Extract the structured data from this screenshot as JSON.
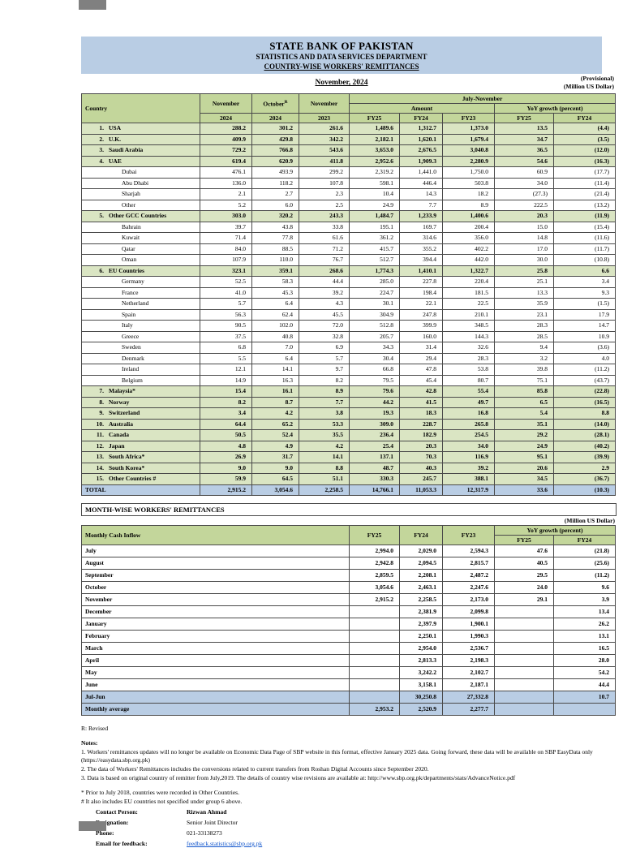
{
  "colors": {
    "header_blue": "#b9cde4",
    "green_header": "#c3d69b",
    "green_row": "#dae5c3",
    "blue_row": "#b9cde4",
    "link_blue": "#1155cc",
    "artifact_grey": "#808080"
  },
  "header": {
    "bank": "STATE BANK OF PAKISTAN",
    "department": "STATISTICS AND DATA SERVICES DEPARTMENT",
    "report": "COUNTRY-WISE WORKERS' REMITTANCES",
    "period": "November, 2024",
    "provisional": "(Provisional)",
    "unit": "(Million US Dollar)"
  },
  "main_table": {
    "header": {
      "country": "Country",
      "col_nov": "November",
      "col_oct": "October",
      "col_oct_sup": "R",
      "col_nov_prev": "November",
      "year_nov": "2024",
      "year_oct": "2024",
      "year_nov_prev": "2023",
      "july_november": "July-November",
      "amount": "Amount",
      "yoy": "YoY growth (percent)",
      "amount_fy": [
        "FY25",
        "FY24",
        "FY23"
      ],
      "yoy_fy": [
        "FY25",
        "FY24"
      ]
    },
    "rows": [
      {
        "n": "1.",
        "name": "USA",
        "t": "main",
        "v": [
          "288.2",
          "301.2",
          "261.6",
          "1,489.6",
          "1,312.7",
          "1,373.0",
          "13.5",
          "(4.4)"
        ]
      },
      {
        "n": "2.",
        "name": "U.K.",
        "t": "main",
        "v": [
          "409.9",
          "429.8",
          "342.2",
          "2,182.1",
          "1,620.1",
          "1,679.4",
          "34.7",
          "(3.5)"
        ]
      },
      {
        "n": "3.",
        "name": "Saudi Arabia",
        "t": "main",
        "v": [
          "729.2",
          "766.8",
          "543.6",
          "3,653.0",
          "2,676.5",
          "3,040.8",
          "36.5",
          "(12.0)"
        ]
      },
      {
        "n": "4.",
        "name": "UAE",
        "t": "main",
        "v": [
          "619.4",
          "620.9",
          "411.8",
          "2,952.6",
          "1,909.3",
          "2,280.9",
          "54.6",
          "(16.3)"
        ]
      },
      {
        "n": "",
        "name": "Dubai",
        "t": "sub",
        "v": [
          "476.1",
          "493.9",
          "299.2",
          "2,319.2",
          "1,441.0",
          "1,750.0",
          "60.9",
          "(17.7)"
        ]
      },
      {
        "n": "",
        "name": "Abu Dhabi",
        "t": "sub",
        "v": [
          "136.0",
          "118.2",
          "107.8",
          "598.1",
          "446.4",
          "503.8",
          "34.0",
          "(11.4)"
        ]
      },
      {
        "n": "",
        "name": "Sharjah",
        "t": "sub",
        "v": [
          "2.1",
          "2.7",
          "2.3",
          "10.4",
          "14.3",
          "18.2",
          "(27.3)",
          "(21.4)"
        ]
      },
      {
        "n": "",
        "name": "Other",
        "t": "sub",
        "v": [
          "5.2",
          "6.0",
          "2.5",
          "24.9",
          "7.7",
          "8.9",
          "222.5",
          "(13.2)"
        ]
      },
      {
        "n": "5.",
        "name": "Other GCC Countries",
        "t": "main",
        "v": [
          "303.0",
          "320.2",
          "243.3",
          "1,484.7",
          "1,233.9",
          "1,400.6",
          "20.3",
          "(11.9)"
        ]
      },
      {
        "n": "",
        "name": "Bahrain",
        "t": "sub",
        "v": [
          "39.7",
          "43.8",
          "33.8",
          "195.1",
          "169.7",
          "200.4",
          "15.0",
          "(15.4)"
        ]
      },
      {
        "n": "",
        "name": "Kuwait",
        "t": "sub",
        "v": [
          "71.4",
          "77.8",
          "61.6",
          "361.2",
          "314.6",
          "356.0",
          "14.8",
          "(11.6)"
        ]
      },
      {
        "n": "",
        "name": "Qatar",
        "t": "sub",
        "v": [
          "84.0",
          "88.5",
          "71.2",
          "415.7",
          "355.2",
          "402.2",
          "17.0",
          "(11.7)"
        ]
      },
      {
        "n": "",
        "name": "Oman",
        "t": "sub",
        "v": [
          "107.9",
          "110.0",
          "76.7",
          "512.7",
          "394.4",
          "442.0",
          "30.0",
          "(10.8)"
        ]
      },
      {
        "n": "6.",
        "name": "EU Countries",
        "t": "main",
        "v": [
          "323.1",
          "359.1",
          "268.6",
          "1,774.3",
          "1,410.1",
          "1,322.7",
          "25.8",
          "6.6"
        ]
      },
      {
        "n": "",
        "name": "Germany",
        "t": "sub",
        "v": [
          "52.5",
          "58.3",
          "44.4",
          "285.0",
          "227.8",
          "220.4",
          "25.1",
          "3.4"
        ]
      },
      {
        "n": "",
        "name": "France",
        "t": "sub",
        "v": [
          "41.0",
          "45.3",
          "39.2",
          "224.7",
          "198.4",
          "181.5",
          "13.3",
          "9.3"
        ]
      },
      {
        "n": "",
        "name": "Netherland",
        "t": "sub",
        "v": [
          "5.7",
          "6.4",
          "4.3",
          "30.1",
          "22.1",
          "22.5",
          "35.9",
          "(1.5)"
        ]
      },
      {
        "n": "",
        "name": "Spain",
        "t": "sub",
        "v": [
          "56.3",
          "62.4",
          "45.5",
          "304.9",
          "247.8",
          "210.1",
          "23.1",
          "17.9"
        ]
      },
      {
        "n": "",
        "name": "Italy",
        "t": "sub",
        "v": [
          "90.5",
          "102.0",
          "72.0",
          "512.8",
          "399.9",
          "348.5",
          "28.3",
          "14.7"
        ]
      },
      {
        "n": "",
        "name": "Greece",
        "t": "sub",
        "v": [
          "37.5",
          "40.8",
          "32.8",
          "205.7",
          "160.0",
          "144.3",
          "28.5",
          "10.9"
        ]
      },
      {
        "n": "",
        "name": "Sweden",
        "t": "sub",
        "v": [
          "6.8",
          "7.0",
          "6.9",
          "34.3",
          "31.4",
          "32.6",
          "9.4",
          "(3.6)"
        ]
      },
      {
        "n": "",
        "name": "Denmark",
        "t": "sub",
        "v": [
          "5.5",
          "6.4",
          "5.7",
          "30.4",
          "29.4",
          "28.3",
          "3.2",
          "4.0"
        ]
      },
      {
        "n": "",
        "name": "Ireland",
        "t": "sub",
        "v": [
          "12.1",
          "14.1",
          "9.7",
          "66.8",
          "47.8",
          "53.8",
          "39.8",
          "(11.2)"
        ]
      },
      {
        "n": "",
        "name": "Belgium",
        "t": "sub",
        "v": [
          "14.9",
          "16.3",
          "8.2",
          "79.5",
          "45.4",
          "80.7",
          "75.1",
          "(43.7)"
        ]
      },
      {
        "n": "7.",
        "name": "Malaysia*",
        "t": "main",
        "v": [
          "15.4",
          "16.1",
          "8.9",
          "79.6",
          "42.8",
          "55.4",
          "85.8",
          "(22.8)"
        ]
      },
      {
        "n": "8.",
        "name": "Norway",
        "t": "main",
        "v": [
          "8.2",
          "8.7",
          "7.7",
          "44.2",
          "41.5",
          "49.7",
          "6.5",
          "(16.5)"
        ]
      },
      {
        "n": "9.",
        "name": "Switzerland",
        "t": "main",
        "v": [
          "3.4",
          "4.2",
          "3.8",
          "19.3",
          "18.3",
          "16.8",
          "5.4",
          "8.8"
        ]
      },
      {
        "n": "10.",
        "name": "Australia",
        "t": "main",
        "v": [
          "64.4",
          "65.2",
          "53.3",
          "309.0",
          "228.7",
          "265.8",
          "35.1",
          "(14.0)"
        ]
      },
      {
        "n": "11.",
        "name": "Canada",
        "t": "main",
        "v": [
          "50.5",
          "52.4",
          "35.5",
          "236.4",
          "182.9",
          "254.5",
          "29.2",
          "(28.1)"
        ]
      },
      {
        "n": "12.",
        "name": "Japan",
        "t": "main",
        "v": [
          "4.8",
          "4.9",
          "4.2",
          "25.4",
          "20.3",
          "34.0",
          "24.9",
          "(40.2)"
        ]
      },
      {
        "n": "13.",
        "name": "South Africa*",
        "t": "main",
        "v": [
          "26.9",
          "31.7",
          "14.1",
          "137.1",
          "70.3",
          "116.9",
          "95.1",
          "(39.9)"
        ]
      },
      {
        "n": "14.",
        "name": "South Korea*",
        "t": "main",
        "v": [
          "9.0",
          "9.0",
          "8.8",
          "48.7",
          "40.3",
          "39.2",
          "20.6",
          "2.9"
        ]
      },
      {
        "n": "15.",
        "name": "Other Countries #",
        "t": "main",
        "v": [
          "59.9",
          "64.5",
          "51.1",
          "330.3",
          "245.7",
          "388.1",
          "34.5",
          "(36.7)"
        ]
      }
    ],
    "total": {
      "label": "TOTAL",
      "v": [
        "2,915.2",
        "3,054.6",
        "2,258.5",
        "14,766.1",
        "11,053.3",
        "12,317.9",
        "33.6",
        "(10.3)"
      ]
    }
  },
  "month_table": {
    "title": "MONTH-WISE WORKERS' REMITTANCES",
    "unit": "(Million US Dollar)",
    "header": {
      "label": "Monthly Cash Inflow",
      "fy": [
        "FY25",
        "FY24",
        "FY23"
      ],
      "yoy": "YoY growth (percent)",
      "yoy_fy": [
        "FY25",
        "FY24"
      ]
    },
    "rows": [
      {
        "name": "July",
        "t": "normal",
        "v": [
          "2,994.0",
          "2,029.0",
          "2,594.3",
          "47.6",
          "(21.8)"
        ]
      },
      {
        "name": "August",
        "t": "normal",
        "v": [
          "2,942.8",
          "2,094.5",
          "2,815.7",
          "40.5",
          "(25.6)"
        ]
      },
      {
        "name": "September",
        "t": "normal",
        "v": [
          "2,859.5",
          "2,208.1",
          "2,487.2",
          "29.5",
          "(11.2)"
        ]
      },
      {
        "name": "October",
        "t": "normal",
        "v": [
          "3,054.6",
          "2,463.1",
          "2,247.6",
          "24.0",
          "9.6"
        ]
      },
      {
        "name": "November",
        "t": "normal",
        "v": [
          "2,915.2",
          "2,258.5",
          "2,173.0",
          "29.1",
          "3.9"
        ]
      },
      {
        "name": "December",
        "t": "normal",
        "v": [
          "",
          "2,381.9",
          "2,099.8",
          "",
          "13.4"
        ]
      },
      {
        "name": "January",
        "t": "normal",
        "v": [
          "",
          "2,397.9",
          "1,900.1",
          "",
          "26.2"
        ]
      },
      {
        "name": "February",
        "t": "normal",
        "v": [
          "",
          "2,250.1",
          "1,990.3",
          "",
          "13.1"
        ]
      },
      {
        "name": "March",
        "t": "normal",
        "v": [
          "",
          "2,954.0",
          "2,536.7",
          "",
          "16.5"
        ]
      },
      {
        "name": "April",
        "t": "normal",
        "v": [
          "",
          "2,813.3",
          "2,198.3",
          "",
          "28.0"
        ]
      },
      {
        "name": "May",
        "t": "normal",
        "v": [
          "",
          "3,242.2",
          "2,102.7",
          "",
          "54.2"
        ]
      },
      {
        "name": "June",
        "t": "normal",
        "v": [
          "",
          "3,158.1",
          "2,187.1",
          "",
          "44.4"
        ]
      },
      {
        "name": "Jul-Jun",
        "t": "hl",
        "v": [
          "",
          "30,250.8",
          "27,332.8",
          "",
          "10.7"
        ]
      },
      {
        "name": "Monthly average",
        "t": "hl",
        "v": [
          "2,953.2",
          "2,520.9",
          "2,277.7",
          "",
          ""
        ]
      }
    ]
  },
  "notes": {
    "revised": "R: Revised",
    "label": "Notes:",
    "items": [
      "1. Workers' remittances updates will no longer be available on Economic Data Page of SBP website in this format, effective January 2025 data. Going forward, these data will be available on SBP EasyData only (https://easydata.sbp.org.pk)",
      "2. The data of Workers' Remittances includes the conversions related to current transfers from Roshan Digital Accounts since September 2020.",
      "3.  Data is based on original country of remitter from July,2019. The details of country wise revisions are available at: http://www.sbp.org.pk/departments/stats/AdvanceNotice.pdf"
    ],
    "star": "* Prior to July 2018, countries were recorded in Other Countries.",
    "hash": "# It also includes EU countries not specified under group 6 above."
  },
  "contact": {
    "person_label": "Contact Person:",
    "person": "Rizwan Ahmad",
    "designation_label": "Designation:",
    "designation": "Senior Joint Director",
    "phone_label": "Phone:",
    "phone": "021-33138273",
    "email_label": "Email for feedback:",
    "email": "feedback.statistics@sbp.org.pk"
  }
}
